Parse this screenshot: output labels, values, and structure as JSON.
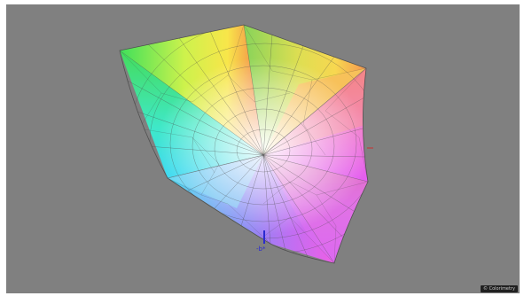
{
  "viewer": {
    "background_color": "#808080",
    "page_background": "#ffffff"
  },
  "gamut": {
    "description_colors": {
      "green": "#41d85a",
      "yellow": "#f8f14a",
      "red_orange": "#f5784a",
      "cyan": "#35e7f0",
      "blue": "#6a7df2",
      "magenta": "#e85cf0",
      "white_center": "#f5f5f5",
      "wireframe": "#505050"
    }
  },
  "axis": {
    "label": "-b*",
    "color": "#2a2ad0"
  },
  "watermark": {
    "text": "© Colorimetry"
  }
}
